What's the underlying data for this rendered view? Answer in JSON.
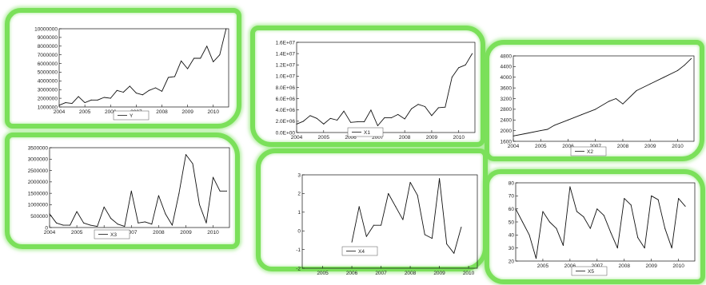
{
  "colors": {
    "frame": "#7be05a",
    "line": "#111111",
    "background": "#ffffff"
  },
  "chart_data": [
    {
      "id": "y",
      "type": "line",
      "legend": "Y",
      "xlim": [
        2004,
        2010.6
      ],
      "ylim": [
        1000000,
        10000000
      ],
      "xticks": [
        {
          "value": 2004,
          "label": "2004"
        },
        {
          "value": 2005,
          "label": "2005"
        },
        {
          "value": 2006,
          "label": "2006"
        },
        {
          "value": 2007,
          "label": "2007"
        },
        {
          "value": 2008,
          "label": "2008"
        },
        {
          "value": 2009,
          "label": "2009"
        },
        {
          "value": 2010,
          "label": "2010"
        }
      ],
      "yticks": [
        {
          "value": 1000000,
          "label": "1000000"
        },
        {
          "value": 2000000,
          "label": "2000000"
        },
        {
          "value": 3000000,
          "label": "3000000"
        },
        {
          "value": 4000000,
          "label": "4000000"
        },
        {
          "value": 5000000,
          "label": "5000000"
        },
        {
          "value": 6000000,
          "label": "6000000"
        },
        {
          "value": 7000000,
          "label": "7000000"
        },
        {
          "value": 8000000,
          "label": "8000000"
        },
        {
          "value": 9000000,
          "label": "9000000"
        },
        {
          "value": 10000000,
          "label": "10000000"
        }
      ],
      "x": [
        2004.0,
        2004.25,
        2004.5,
        2004.75,
        2005.0,
        2005.25,
        2005.5,
        2005.75,
        2006.0,
        2006.25,
        2006.5,
        2006.75,
        2007.0,
        2007.25,
        2007.5,
        2007.75,
        2008.0,
        2008.25,
        2008.5,
        2008.75,
        2009.0,
        2009.25,
        2009.5,
        2009.75,
        2010.0,
        2010.25,
        2010.5
      ],
      "y": [
        1200000,
        1500000,
        1400000,
        2200000,
        1500000,
        1800000,
        1800000,
        2100000,
        2000000,
        2900000,
        2700000,
        3400000,
        2600000,
        2400000,
        2900000,
        3200000,
        2800000,
        4400000,
        4500000,
        6300000,
        5400000,
        6600000,
        6600000,
        8000000,
        6200000,
        7000000,
        10000000
      ]
    },
    {
      "id": "x1",
      "type": "line",
      "legend": "X1",
      "xlim": [
        2004,
        2010.6
      ],
      "ylim": [
        0,
        16000000
      ],
      "xticks": [
        {
          "value": 2004,
          "label": "2004"
        },
        {
          "value": 2005,
          "label": "2005"
        },
        {
          "value": 2006,
          "label": "2006"
        },
        {
          "value": 2007,
          "label": "2007"
        },
        {
          "value": 2008,
          "label": "2008"
        },
        {
          "value": 2009,
          "label": "2009"
        },
        {
          "value": 2010,
          "label": "2010"
        }
      ],
      "yticks": [
        {
          "value": 0,
          "label": "0.0E+00"
        },
        {
          "value": 2000000,
          "label": "2.0E+06"
        },
        {
          "value": 4000000,
          "label": "4.0E+06"
        },
        {
          "value": 6000000,
          "label": "6.0E+06"
        },
        {
          "value": 8000000,
          "label": "8.0E+06"
        },
        {
          "value": 10000000,
          "label": "1.0E+07"
        },
        {
          "value": 12000000,
          "label": "1.2E+07"
        },
        {
          "value": 14000000,
          "label": "1.4E+07"
        },
        {
          "value": 16000000,
          "label": "1.6E+07"
        }
      ],
      "x": [
        2004.0,
        2004.25,
        2004.5,
        2004.75,
        2005.0,
        2005.25,
        2005.5,
        2005.75,
        2006.0,
        2006.25,
        2006.5,
        2006.75,
        2007.0,
        2007.25,
        2007.5,
        2007.75,
        2008.0,
        2008.25,
        2008.5,
        2008.75,
        2009.0,
        2009.25,
        2009.5,
        2009.75,
        2010.0,
        2010.25,
        2010.5
      ],
      "y": [
        1500000,
        2000000,
        3000000,
        2500000,
        1500000,
        2500000,
        2200000,
        3800000,
        1800000,
        1900000,
        1900000,
        4000000,
        1200000,
        2600000,
        2600000,
        3200000,
        2400000,
        4200000,
        5000000,
        4600000,
        3000000,
        4400000,
        4500000,
        9800000,
        11500000,
        12000000,
        14000000
      ]
    },
    {
      "id": "x2",
      "type": "line",
      "legend": "X2",
      "xlim": [
        2004,
        2010.6
      ],
      "ylim": [
        1600,
        4800
      ],
      "xticks": [
        {
          "value": 2004,
          "label": "2004"
        },
        {
          "value": 2005,
          "label": "2005"
        },
        {
          "value": 2006,
          "label": "2006"
        },
        {
          "value": 2007,
          "label": "2007"
        },
        {
          "value": 2008,
          "label": "2008"
        },
        {
          "value": 2009,
          "label": "2009"
        },
        {
          "value": 2010,
          "label": "2010"
        }
      ],
      "yticks": [
        {
          "value": 1600,
          "label": "1600"
        },
        {
          "value": 2000,
          "label": "2000"
        },
        {
          "value": 2400,
          "label": "2400"
        },
        {
          "value": 2800,
          "label": "2800"
        },
        {
          "value": 3200,
          "label": "3200"
        },
        {
          "value": 3600,
          "label": "3600"
        },
        {
          "value": 4000,
          "label": "4000"
        },
        {
          "value": 4400,
          "label": "4400"
        },
        {
          "value": 4800,
          "label": "4800"
        }
      ],
      "x": [
        2004.0,
        2004.5,
        2005.0,
        2005.25,
        2005.5,
        2006.0,
        2006.5,
        2007.0,
        2007.5,
        2007.75,
        2008.0,
        2008.5,
        2009.0,
        2009.5,
        2010.0,
        2010.25,
        2010.5
      ],
      "y": [
        1800,
        1900,
        2000,
        2050,
        2200,
        2400,
        2600,
        2800,
        3100,
        3200,
        3000,
        3500,
        3750,
        4000,
        4250,
        4450,
        4700
      ]
    },
    {
      "id": "x3",
      "type": "line",
      "legend": "X3",
      "xlim": [
        2004,
        2010.6
      ],
      "ylim": [
        0,
        3500000
      ],
      "xticks": [
        {
          "value": 2004,
          "label": "2004"
        },
        {
          "value": 2005,
          "label": "2005"
        },
        {
          "value": 2006,
          "label": "2006"
        },
        {
          "value": 2007,
          "label": "2007"
        },
        {
          "value": 2008,
          "label": "2008"
        },
        {
          "value": 2009,
          "label": "2009"
        },
        {
          "value": 2010,
          "label": "2010"
        }
      ],
      "yticks": [
        {
          "value": 0,
          "label": "0"
        },
        {
          "value": 500000,
          "label": "500000"
        },
        {
          "value": 1000000,
          "label": "1000000"
        },
        {
          "value": 1500000,
          "label": "1500000"
        },
        {
          "value": 2000000,
          "label": "2000000"
        },
        {
          "value": 2500000,
          "label": "2500000"
        },
        {
          "value": 3000000,
          "label": "3000000"
        },
        {
          "value": 3500000,
          "label": "3500000"
        }
      ],
      "x": [
        2004.0,
        2004.25,
        2004.5,
        2004.75,
        2005.0,
        2005.25,
        2005.5,
        2005.75,
        2006.0,
        2006.25,
        2006.5,
        2006.75,
        2007.0,
        2007.25,
        2007.5,
        2007.75,
        2008.0,
        2008.25,
        2008.5,
        2008.75,
        2009.0,
        2009.25,
        2009.5,
        2009.75,
        2010.0,
        2010.25,
        2010.5
      ],
      "y": [
        600000,
        200000,
        100000,
        100000,
        700000,
        200000,
        100000,
        50000,
        900000,
        400000,
        150000,
        50000,
        1600000,
        200000,
        250000,
        150000,
        1400000,
        600000,
        100000,
        1500000,
        3200000,
        2800000,
        1000000,
        200000,
        2200000,
        1600000,
        1600000
      ]
    },
    {
      "id": "x4",
      "type": "line",
      "legend": "X4",
      "xlim": [
        2004.3,
        2010.3
      ],
      "ylim": [
        -2,
        3
      ],
      "xticks": [
        {
          "value": 2005,
          "label": "2005"
        },
        {
          "value": 2006,
          "label": "2006"
        },
        {
          "value": 2007,
          "label": "2007"
        },
        {
          "value": 2008,
          "label": "2008"
        },
        {
          "value": 2009,
          "label": "2009"
        },
        {
          "value": 2010,
          "label": "2010"
        }
      ],
      "yticks": [
        {
          "value": -2,
          "label": "-2"
        },
        {
          "value": -1,
          "label": "-1"
        },
        {
          "value": 0,
          "label": "0"
        },
        {
          "value": 1,
          "label": "1"
        },
        {
          "value": 2,
          "label": "2"
        },
        {
          "value": 3,
          "label": "3"
        }
      ],
      "x": [
        2006.0,
        2006.25,
        2006.5,
        2006.75,
        2007.0,
        2007.25,
        2007.5,
        2007.75,
        2008.0,
        2008.25,
        2008.5,
        2008.75,
        2009.0,
        2009.25,
        2009.5,
        2009.75
      ],
      "y": [
        -0.6,
        1.3,
        -0.3,
        0.3,
        0.3,
        2.0,
        1.3,
        0.6,
        2.6,
        1.9,
        -0.2,
        -0.4,
        2.8,
        -0.7,
        -1.2,
        0.2
      ]
    },
    {
      "id": "x5",
      "type": "line",
      "legend": "X5",
      "xlim": [
        2004,
        2010.6
      ],
      "ylim": [
        20,
        80
      ],
      "xticks": [
        {
          "value": 2005,
          "label": "2005"
        },
        {
          "value": 2006,
          "label": "2006"
        },
        {
          "value": 2007,
          "label": "2007"
        },
        {
          "value": 2008,
          "label": "2008"
        },
        {
          "value": 2009,
          "label": "2009"
        },
        {
          "value": 2010,
          "label": "2010"
        }
      ],
      "yticks": [
        {
          "value": 20,
          "label": "20"
        },
        {
          "value": 30,
          "label": "30"
        },
        {
          "value": 40,
          "label": "40"
        },
        {
          "value": 50,
          "label": "50"
        },
        {
          "value": 60,
          "label": "60"
        },
        {
          "value": 70,
          "label": "70"
        },
        {
          "value": 80,
          "label": "80"
        }
      ],
      "x": [
        2004.0,
        2004.25,
        2004.5,
        2004.75,
        2005.0,
        2005.25,
        2005.5,
        2005.75,
        2006.0,
        2006.25,
        2006.5,
        2006.75,
        2007.0,
        2007.25,
        2007.5,
        2007.75,
        2008.0,
        2008.25,
        2008.5,
        2008.75,
        2009.0,
        2009.25,
        2009.5,
        2009.75,
        2010.0,
        2010.25
      ],
      "y": [
        60,
        50,
        40,
        22,
        58,
        50,
        45,
        32,
        77,
        58,
        54,
        45,
        60,
        55,
        42,
        30,
        68,
        63,
        38,
        30,
        70,
        67,
        45,
        30,
        68,
        62
      ]
    }
  ]
}
